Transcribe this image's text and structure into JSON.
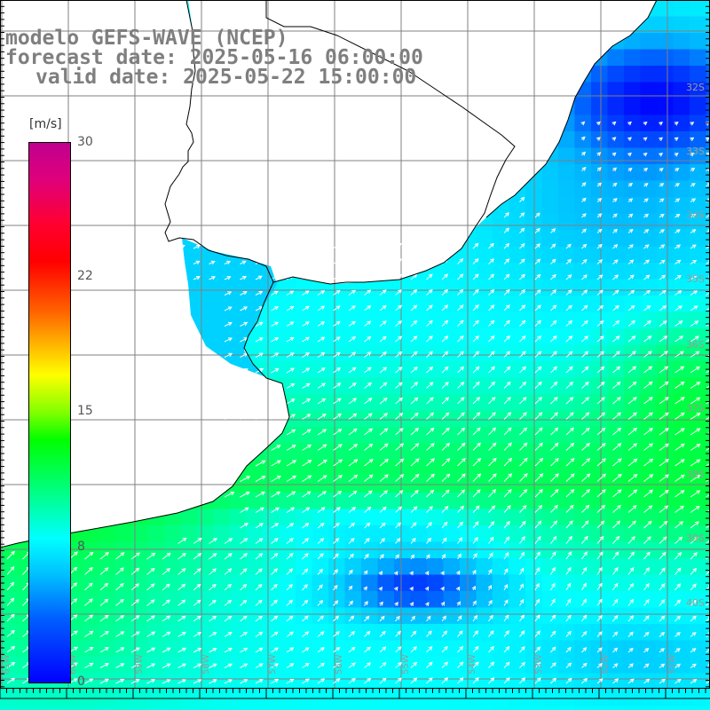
{
  "header": {
    "line1": "modelo GEFS-WAVE (NCEP)",
    "line2": "forecast date: 2025-05-16 06:00:00",
    "line3": "valid date: 2025-05-22 15:00:00"
  },
  "colorbar": {
    "unit": "[m/s]",
    "ticks": [
      "30",
      "22",
      "15",
      "8",
      "0"
    ],
    "tick_values": [
      30,
      22,
      15,
      8,
      0
    ],
    "min": 0,
    "max": 30
  },
  "latitude_labels": [
    "32S",
    "33S",
    "34S",
    "35S",
    "36S",
    "37S",
    "38S",
    "39S",
    "40S"
  ],
  "longitude_labels": [
    "61W",
    "60W",
    "59W",
    "58W",
    "57W",
    "56W",
    "55W",
    "54W",
    "53W",
    "52W",
    "51W"
  ],
  "colors": {
    "land": "#ffffff",
    "coastline": "#000000",
    "grid": "#808080",
    "arrows": "#ffffff",
    "title": "#7f7f7f"
  },
  "field": {
    "variable": "wind speed",
    "arrow_color": "white",
    "notes": "Field shows weak winds (blue) in the upper-right bay region and a low-speed pocket in the south, with moderate (green) winds along the coast and cyan elsewhere."
  }
}
